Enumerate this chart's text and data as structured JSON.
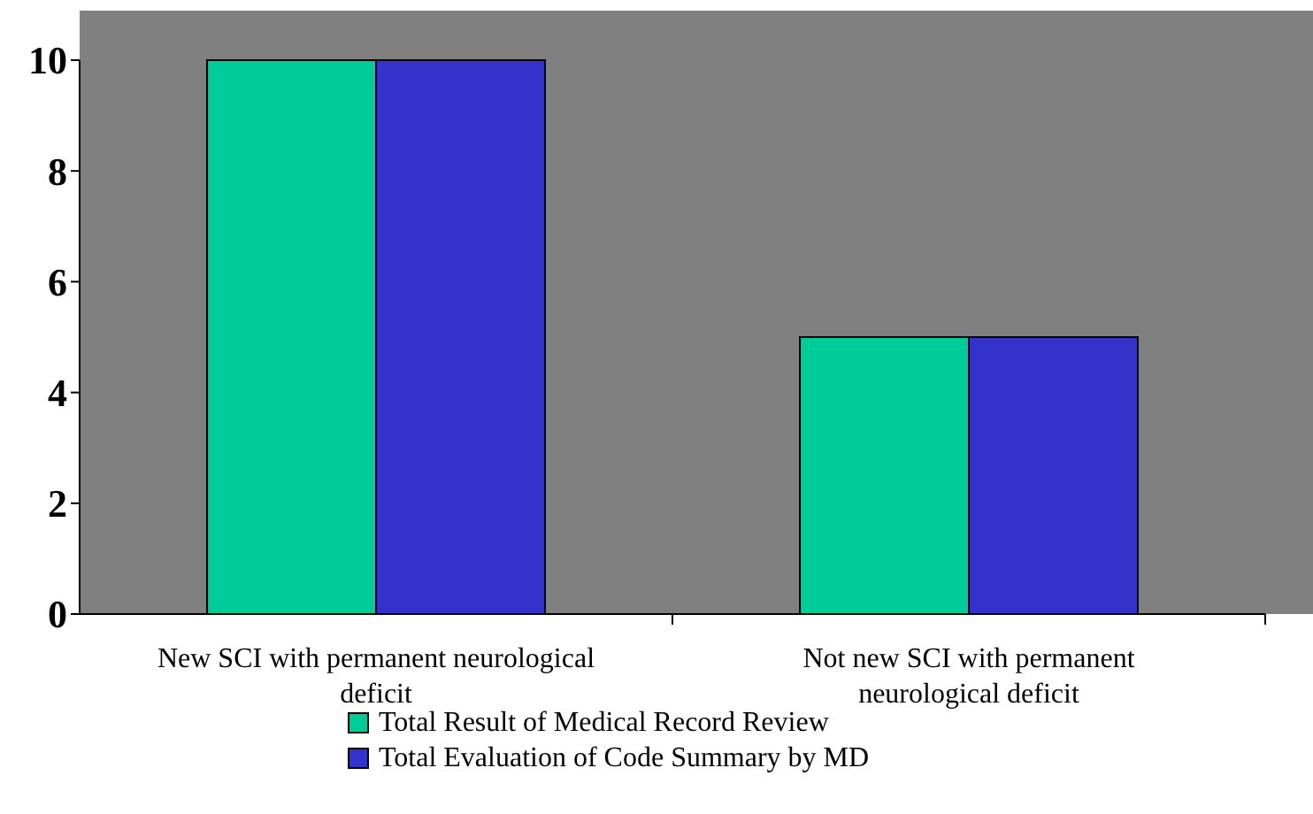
{
  "chart_data": {
    "type": "bar",
    "categories": [
      "New SCI with permanent neurological deficit",
      "Not new SCI with permanent neurological deficit"
    ],
    "series": [
      {
        "name": "Total Result of Medical Record Review",
        "color": "#00cc99",
        "values": [
          10,
          5
        ]
      },
      {
        "name": "Total Evaluation of Code Summary by MD",
        "color": "#3333cc",
        "values": [
          10,
          5
        ]
      }
    ],
    "ylim": [
      0,
      10
    ],
    "yticks": [
      0,
      2,
      4,
      6,
      8,
      10
    ],
    "grid": false,
    "legend": "bottom"
  }
}
